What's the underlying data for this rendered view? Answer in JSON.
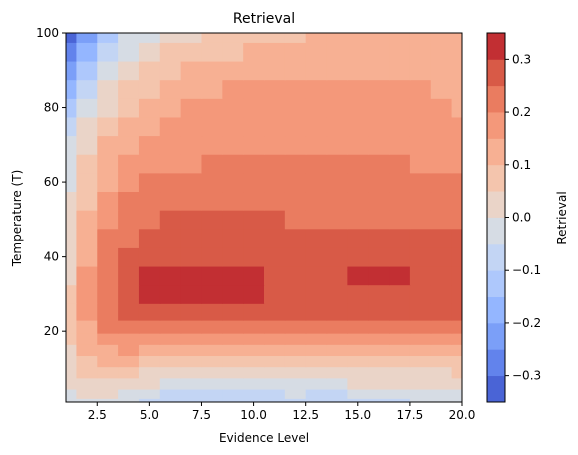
{
  "chart_data": {
    "type": "heatmap",
    "title": "Retrieval",
    "xlabel": "Evidence Level",
    "ylabel": "Temperature (T)",
    "colorbar_label": "Retrieval",
    "xlim": [
      1,
      20
    ],
    "ylim": [
      1,
      100
    ],
    "x_ticks": [
      "2.5",
      "5.0",
      "7.5",
      "10.0",
      "12.5",
      "15.0",
      "17.5",
      "20.0"
    ],
    "x_tick_values": [
      2.5,
      5.0,
      7.5,
      10.0,
      12.5,
      15.0,
      17.5,
      20.0
    ],
    "y_ticks": [
      "20",
      "40",
      "60",
      "80",
      "100"
    ],
    "y_tick_values": [
      20,
      40,
      60,
      80,
      100
    ],
    "colorbar_ticks": [
      "0.3",
      "0.2",
      "0.1",
      "0.0",
      "−0.1",
      "−0.2",
      "−0.3"
    ],
    "colorbar_tick_values": [
      0.3,
      0.2,
      0.1,
      0.0,
      -0.1,
      -0.2,
      -0.3
    ],
    "colorbar_range": [
      -0.35,
      0.35
    ],
    "levels": [
      -0.35,
      -0.3,
      -0.25,
      -0.2,
      -0.15,
      -0.1,
      -0.05,
      0.0,
      0.05,
      0.1,
      0.15,
      0.2,
      0.25,
      0.3,
      0.35
    ],
    "level_colors": [
      "#4a64d6",
      "#6283ec",
      "#7b9ff8",
      "#94b6ff",
      "#aec8fc",
      "#c3d5f4",
      "#d6dce4",
      "#ead4c8",
      "#f4c5ad",
      "#f7b093",
      "#f4987a",
      "#ea7c60",
      "#d85a47",
      "#c22f33"
    ],
    "colormap": "coolwarm",
    "grid": false,
    "x_grid": [
      1,
      2,
      3,
      4,
      5,
      6,
      7,
      8,
      9,
      10,
      11,
      12,
      13,
      14,
      15,
      16,
      17,
      18,
      19,
      20
    ],
    "y_grid": [
      1,
      3,
      6,
      9,
      12,
      15,
      18,
      21,
      25,
      30,
      35,
      40,
      45,
      50,
      55,
      60,
      65,
      70,
      75,
      80,
      85,
      90,
      95,
      100
    ],
    "values": [
      [
        -0.05,
        -0.04,
        -0.03,
        -0.03,
        -0.08,
        -0.09,
        -0.09,
        -0.09,
        -0.09,
        -0.09,
        -0.08,
        -0.07,
        -0.08,
        -0.09,
        -0.08,
        -0.07,
        -0.06,
        -0.05,
        -0.05,
        -0.05
      ],
      [
        -0.02,
        0.0,
        0.0,
        -0.01,
        -0.04,
        -0.06,
        -0.06,
        -0.07,
        -0.06,
        -0.07,
        -0.06,
        -0.05,
        -0.06,
        -0.06,
        -0.05,
        -0.04,
        -0.03,
        -0.03,
        -0.03,
        -0.02
      ],
      [
        0.01,
        0.03,
        0.03,
        0.03,
        0.0,
        -0.01,
        -0.02,
        -0.02,
        -0.02,
        -0.02,
        -0.02,
        -0.01,
        -0.01,
        -0.01,
        0.0,
        0.0,
        0.0,
        0.01,
        0.01,
        0.01
      ],
      [
        0.02,
        0.05,
        0.06,
        0.06,
        0.04,
        0.03,
        0.02,
        0.02,
        0.02,
        0.02,
        0.02,
        0.02,
        0.02,
        0.02,
        0.03,
        0.03,
        0.04,
        0.04,
        0.04,
        0.05
      ],
      [
        0.03,
        0.08,
        0.1,
        0.1,
        0.09,
        0.08,
        0.07,
        0.07,
        0.07,
        0.07,
        0.06,
        0.06,
        0.06,
        0.06,
        0.07,
        0.07,
        0.08,
        0.08,
        0.08,
        0.08
      ],
      [
        0.04,
        0.1,
        0.14,
        0.15,
        0.14,
        0.13,
        0.12,
        0.12,
        0.12,
        0.11,
        0.11,
        0.1,
        0.11,
        0.11,
        0.11,
        0.12,
        0.12,
        0.13,
        0.13,
        0.13
      ],
      [
        0.05,
        0.12,
        0.17,
        0.19,
        0.19,
        0.18,
        0.17,
        0.16,
        0.16,
        0.16,
        0.15,
        0.15,
        0.15,
        0.15,
        0.16,
        0.16,
        0.16,
        0.17,
        0.17,
        0.18
      ],
      [
        0.05,
        0.14,
        0.2,
        0.23,
        0.24,
        0.23,
        0.22,
        0.21,
        0.21,
        0.21,
        0.21,
        0.21,
        0.21,
        0.21,
        0.21,
        0.21,
        0.21,
        0.21,
        0.22,
        0.22
      ],
      [
        0.05,
        0.15,
        0.22,
        0.26,
        0.29,
        0.29,
        0.28,
        0.28,
        0.28,
        0.27,
        0.26,
        0.26,
        0.26,
        0.26,
        0.26,
        0.26,
        0.26,
        0.26,
        0.26,
        0.26
      ],
      [
        0.05,
        0.15,
        0.23,
        0.27,
        0.31,
        0.31,
        0.31,
        0.31,
        0.31,
        0.3,
        0.28,
        0.27,
        0.27,
        0.28,
        0.28,
        0.28,
        0.28,
        0.28,
        0.27,
        0.27
      ],
      [
        0.04,
        0.15,
        0.23,
        0.27,
        0.3,
        0.3,
        0.31,
        0.31,
        0.31,
        0.3,
        0.28,
        0.28,
        0.28,
        0.29,
        0.3,
        0.3,
        0.3,
        0.29,
        0.28,
        0.28
      ],
      [
        0.03,
        0.14,
        0.22,
        0.26,
        0.28,
        0.28,
        0.28,
        0.28,
        0.28,
        0.27,
        0.27,
        0.27,
        0.27,
        0.27,
        0.27,
        0.27,
        0.27,
        0.27,
        0.27,
        0.27
      ],
      [
        0.02,
        0.12,
        0.2,
        0.24,
        0.26,
        0.26,
        0.26,
        0.26,
        0.26,
        0.26,
        0.26,
        0.26,
        0.26,
        0.26,
        0.26,
        0.26,
        0.26,
        0.26,
        0.26,
        0.26
      ],
      [
        0.01,
        0.1,
        0.18,
        0.22,
        0.24,
        0.25,
        0.25,
        0.25,
        0.25,
        0.25,
        0.25,
        0.24,
        0.24,
        0.24,
        0.24,
        0.24,
        0.24,
        0.24,
        0.24,
        0.24
      ],
      [
        0.0,
        0.09,
        0.16,
        0.2,
        0.22,
        0.24,
        0.24,
        0.24,
        0.24,
        0.23,
        0.23,
        0.23,
        0.23,
        0.23,
        0.23,
        0.23,
        0.23,
        0.23,
        0.22,
        0.22
      ],
      [
        -0.01,
        0.07,
        0.14,
        0.18,
        0.2,
        0.2,
        0.21,
        0.22,
        0.22,
        0.22,
        0.22,
        0.22,
        0.22,
        0.22,
        0.22,
        0.21,
        0.21,
        0.2,
        0.2,
        0.2
      ],
      [
        -0.03,
        0.05,
        0.12,
        0.16,
        0.18,
        0.18,
        0.19,
        0.2,
        0.2,
        0.2,
        0.2,
        0.2,
        0.2,
        0.2,
        0.2,
        0.2,
        0.2,
        0.19,
        0.19,
        0.19
      ],
      [
        -0.05,
        0.03,
        0.1,
        0.14,
        0.16,
        0.17,
        0.18,
        0.18,
        0.19,
        0.19,
        0.19,
        0.19,
        0.19,
        0.19,
        0.19,
        0.19,
        0.18,
        0.18,
        0.17,
        0.17
      ],
      [
        -0.08,
        0.0,
        0.07,
        0.12,
        0.14,
        0.16,
        0.16,
        0.17,
        0.17,
        0.18,
        0.18,
        0.18,
        0.18,
        0.18,
        0.18,
        0.18,
        0.17,
        0.17,
        0.16,
        0.16
      ],
      [
        -0.12,
        -0.03,
        0.04,
        0.09,
        0.12,
        0.14,
        0.15,
        0.16,
        0.16,
        0.17,
        0.17,
        0.17,
        0.17,
        0.17,
        0.17,
        0.16,
        0.16,
        0.16,
        0.15,
        0.14
      ],
      [
        -0.17,
        -0.07,
        0.01,
        0.06,
        0.09,
        0.11,
        0.13,
        0.14,
        0.15,
        0.15,
        0.15,
        0.16,
        0.16,
        0.16,
        0.16,
        0.16,
        0.15,
        0.15,
        0.14,
        0.14
      ],
      [
        -0.22,
        -0.11,
        -0.03,
        0.03,
        0.06,
        0.08,
        0.1,
        0.11,
        0.12,
        0.13,
        0.13,
        0.14,
        0.14,
        0.14,
        0.14,
        0.14,
        0.14,
        0.14,
        0.14,
        0.14
      ],
      [
        -0.27,
        -0.16,
        -0.07,
        -0.01,
        0.03,
        0.05,
        0.07,
        0.08,
        0.09,
        0.1,
        0.11,
        0.11,
        0.12,
        0.12,
        0.12,
        0.13,
        0.13,
        0.13,
        0.13,
        0.13
      ],
      [
        -0.32,
        -0.21,
        -0.11,
        -0.05,
        -0.01,
        0.02,
        0.04,
        0.05,
        0.06,
        0.07,
        0.08,
        0.09,
        0.1,
        0.1,
        0.11,
        0.11,
        0.12,
        0.12,
        0.12,
        0.12
      ]
    ]
  }
}
